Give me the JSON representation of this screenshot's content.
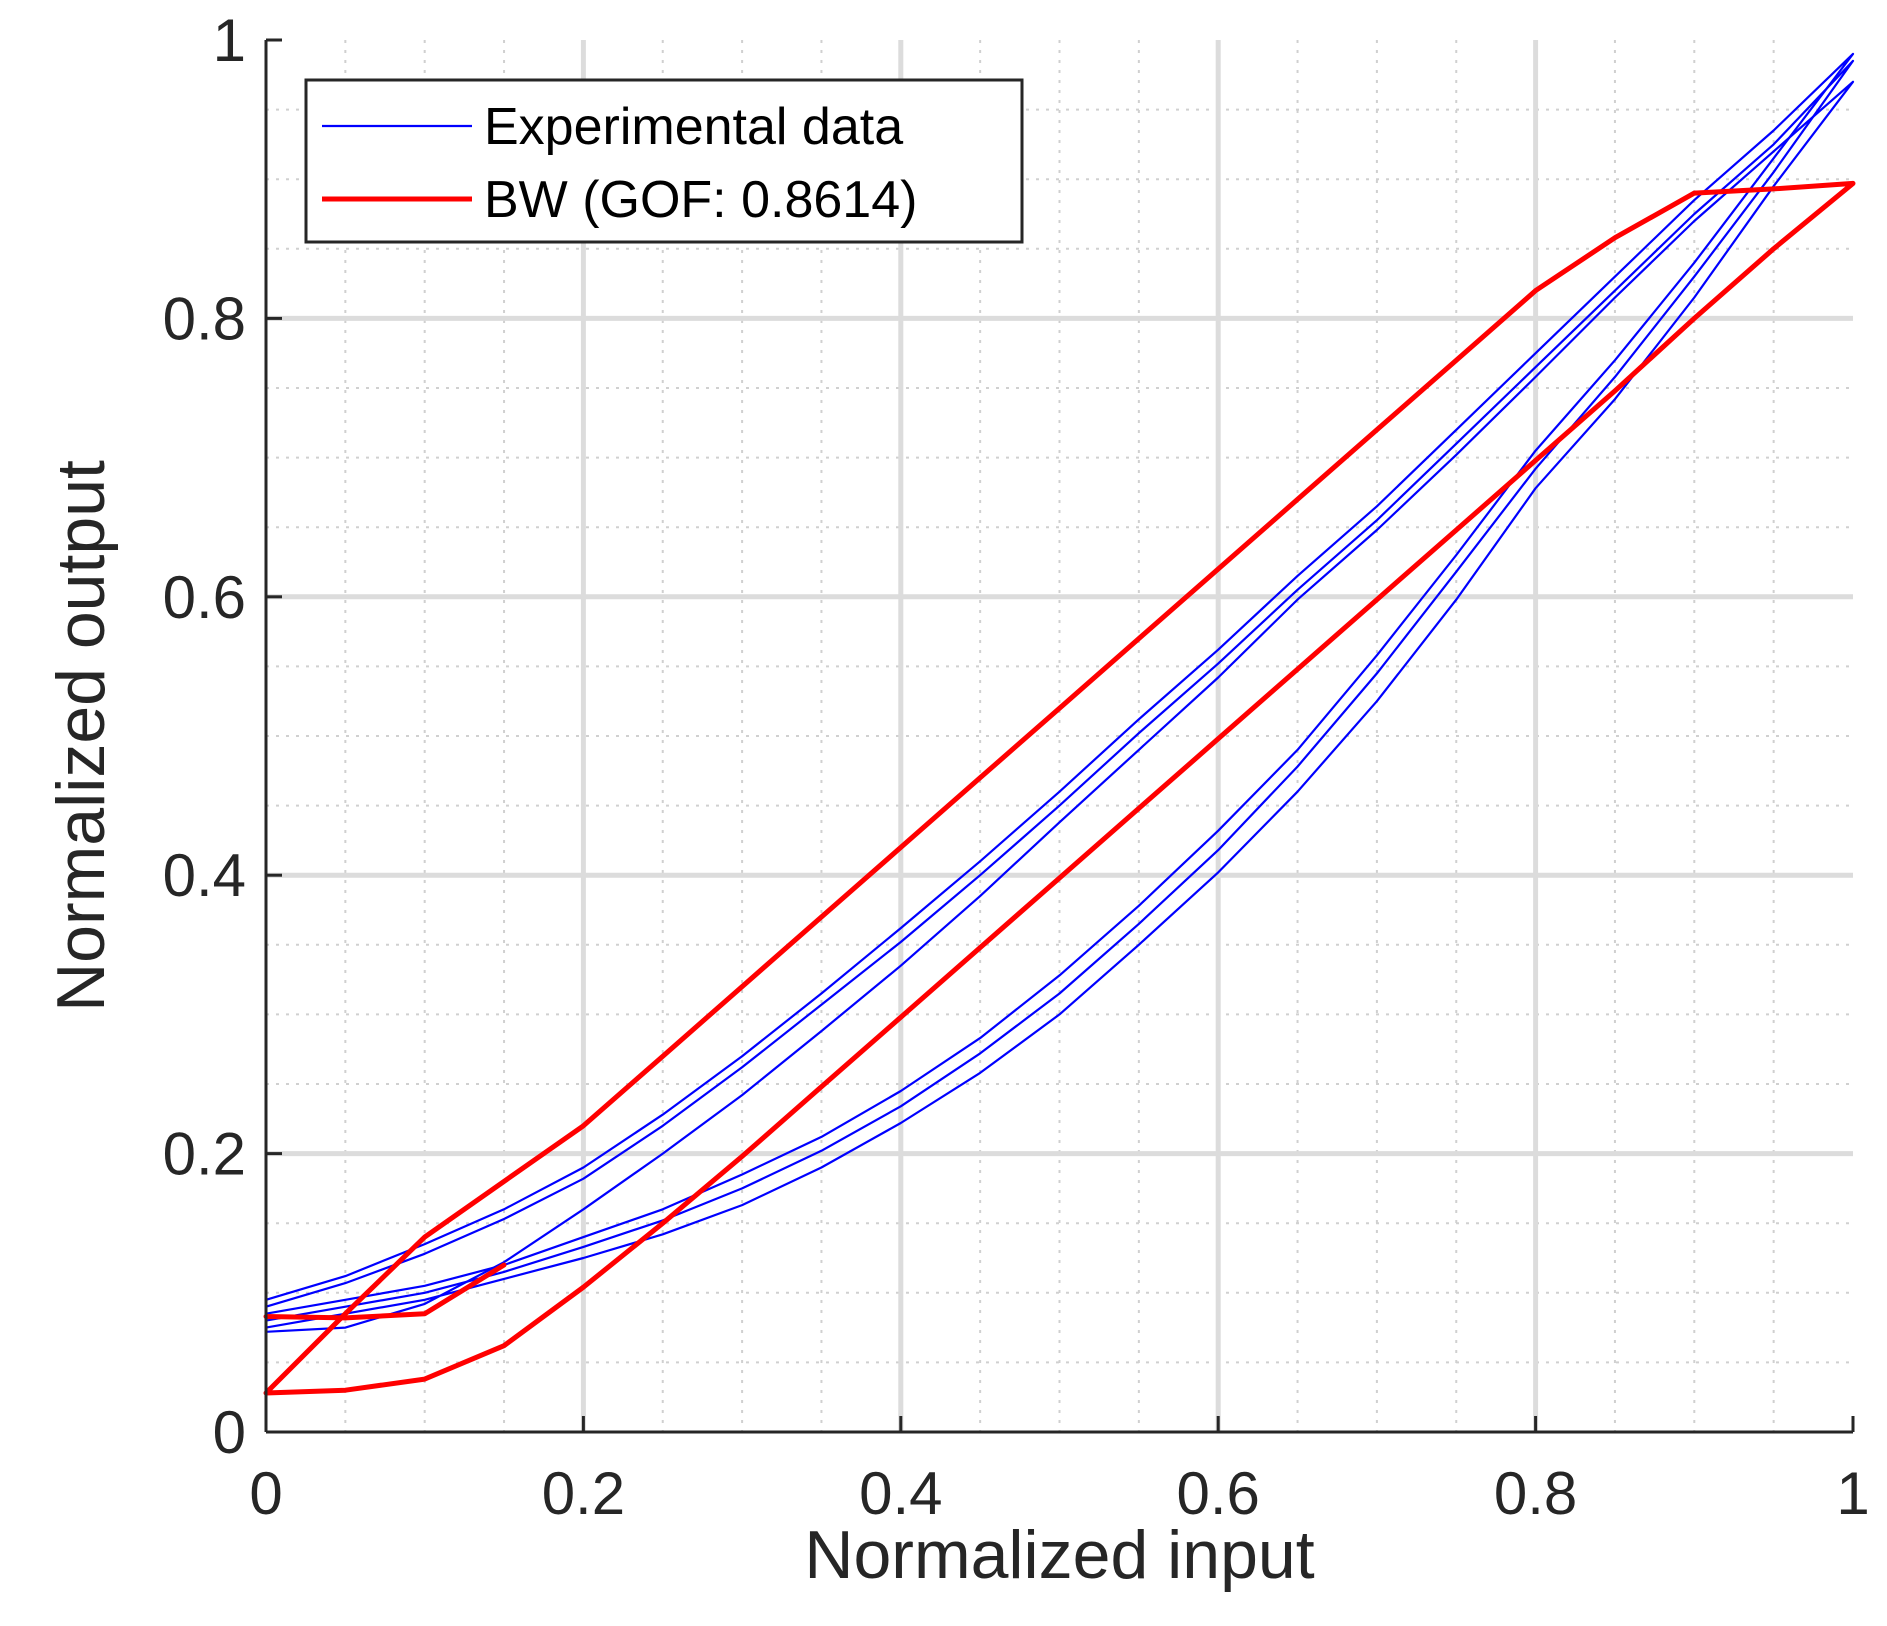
{
  "chart_data": {
    "type": "line",
    "title": "",
    "xlabel": "Normalized input",
    "ylabel": "Normalized output",
    "xlim": [
      0,
      1
    ],
    "ylim": [
      0,
      1
    ],
    "xticks": [
      0,
      0.2,
      0.4,
      0.6,
      0.8,
      1
    ],
    "yticks": [
      0,
      0.2,
      0.4,
      0.6,
      0.8,
      1
    ],
    "xtick_labels": [
      "0",
      "0.2",
      "0.4",
      "0.6",
      "0.8",
      "1"
    ],
    "ytick_labels": [
      "0",
      "0.2",
      "0.4",
      "0.6",
      "0.8",
      "1"
    ],
    "major_grid_step": 0.2,
    "minor_grid_step": 0.05,
    "grid": true,
    "minor_grid": true,
    "legend_position": "top-left",
    "series": [
      {
        "name": "Experimental data",
        "color": "#0000ff",
        "style": "thin",
        "cycles": [
          {
            "x": [
              0,
              0.05,
              0.1,
              0.15,
              0.2,
              0.25,
              0.3,
              0.35,
              0.4,
              0.45,
              0.5,
              0.55,
              0.6,
              0.65,
              0.7,
              0.75,
              0.8,
              0.85,
              0.9,
              0.95,
              1,
              0.95,
              0.9,
              0.85,
              0.8,
              0.75,
              0.7,
              0.65,
              0.6,
              0.55,
              0.5,
              0.45,
              0.4,
              0.35,
              0.3,
              0.25,
              0.2,
              0.15,
              0.1,
              0.05,
              0
            ],
            "y": [
              0.095,
              0.112,
              0.135,
              0.16,
              0.19,
              0.228,
              0.27,
              0.315,
              0.362,
              0.41,
              0.46,
              0.512,
              0.562,
              0.615,
              0.665,
              0.72,
              0.775,
              0.83,
              0.885,
              0.935,
              0.99,
              0.915,
              0.84,
              0.77,
              0.705,
              0.63,
              0.558,
              0.49,
              0.432,
              0.378,
              0.328,
              0.283,
              0.245,
              0.212,
              0.185,
              0.16,
              0.14,
              0.12,
              0.105,
              0.095,
              0.085
            ]
          },
          {
            "x": [
              0,
              0.05,
              0.1,
              0.15,
              0.2,
              0.25,
              0.3,
              0.35,
              0.4,
              0.45,
              0.5,
              0.55,
              0.6,
              0.65,
              0.7,
              0.75,
              0.8,
              0.85,
              0.9,
              0.95,
              1,
              0.95,
              0.9,
              0.85,
              0.8,
              0.75,
              0.7,
              0.65,
              0.6,
              0.55,
              0.5,
              0.45,
              0.4,
              0.35,
              0.3,
              0.25,
              0.2,
              0.15,
              0.1,
              0.05,
              0
            ],
            "y": [
              0.09,
              0.107,
              0.128,
              0.153,
              0.182,
              0.22,
              0.262,
              0.307,
              0.352,
              0.4,
              0.45,
              0.502,
              0.552,
              0.605,
              0.655,
              0.71,
              0.765,
              0.82,
              0.875,
              0.925,
              0.985,
              0.905,
              0.83,
              0.758,
              0.692,
              0.618,
              0.545,
              0.478,
              0.418,
              0.365,
              0.315,
              0.272,
              0.234,
              0.202,
              0.175,
              0.152,
              0.133,
              0.115,
              0.1,
              0.09,
              0.08
            ]
          },
          {
            "x": [
              0,
              0.05,
              0.1,
              0.15,
              0.2,
              0.25,
              0.3,
              0.35,
              0.4,
              0.45,
              0.5,
              0.55,
              0.6,
              0.65,
              0.7,
              0.75,
              0.8,
              0.85,
              0.9,
              0.95,
              1,
              0.95,
              0.9,
              0.85,
              0.8,
              0.75,
              0.7,
              0.65,
              0.6,
              0.55,
              0.5,
              0.45,
              0.4,
              0.35,
              0.3,
              0.25,
              0.2,
              0.15,
              0.1,
              0.05,
              0
            ],
            "y": [
              0.072,
              0.075,
              0.092,
              0.122,
              0.16,
              0.2,
              0.242,
              0.288,
              0.335,
              0.385,
              0.438,
              0.49,
              0.542,
              0.598,
              0.648,
              0.702,
              0.758,
              0.815,
              0.87,
              0.92,
              0.97,
              0.895,
              0.815,
              0.742,
              0.678,
              0.598,
              0.525,
              0.46,
              0.402,
              0.35,
              0.3,
              0.258,
              0.222,
              0.19,
              0.163,
              0.142,
              0.125,
              0.11,
              0.095,
              0.085,
              0.075
            ]
          }
        ]
      },
      {
        "name": "BW (GOF: 0.8614)",
        "color": "#ff0000",
        "style": "thick",
        "cycles": [
          {
            "x": [
              0,
              0.05,
              0.1,
              0.15,
              0.2,
              0.25,
              0.3,
              0.35,
              0.4,
              0.45,
              0.5,
              0.55,
              0.6,
              0.65,
              0.7,
              0.75,
              0.8,
              0.85,
              0.9,
              0.95,
              1,
              0.95,
              0.9,
              0.85,
              0.8,
              0.75,
              0.7,
              0.65,
              0.6,
              0.55,
              0.5,
              0.45,
              0.4,
              0.35,
              0.3,
              0.25,
              0.2,
              0.15,
              0.1,
              0.05,
              0
            ],
            "y": [
              0.028,
              0.085,
              0.14,
              0.18,
              0.22,
              0.27,
              0.32,
              0.37,
              0.42,
              0.47,
              0.52,
              0.57,
              0.62,
              0.67,
              0.72,
              0.77,
              0.82,
              0.858,
              0.89,
              0.893,
              0.897,
              0.85,
              0.8,
              0.748,
              0.698,
              0.648,
              0.598,
              0.548,
              0.498,
              0.448,
              0.398,
              0.348,
              0.298,
              0.248,
              0.198,
              0.15,
              0.104,
              0.062,
              0.038,
              0.03,
              0.028
            ]
          },
          {
            "x": [
              0,
              0.05,
              0.1,
              0.15
            ],
            "y": [
              0.083,
              0.082,
              0.085,
              0.12
            ]
          }
        ]
      }
    ]
  }
}
